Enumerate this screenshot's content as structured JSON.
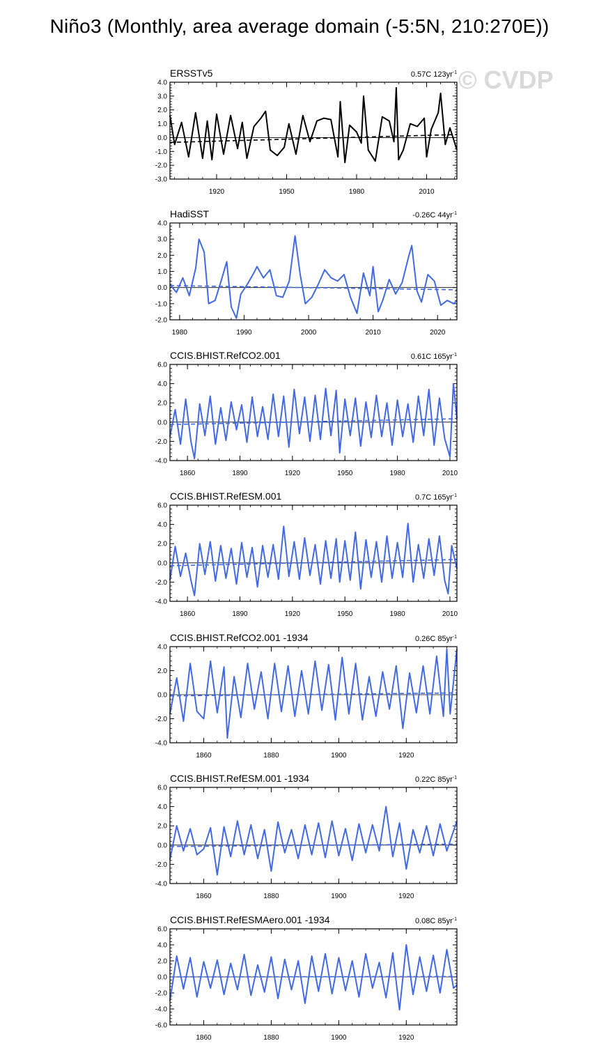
{
  "figure": {
    "title": "Niño3 (Monthly, area average domain (-5:5N, 210:270E))",
    "watermark": "© CVDP"
  },
  "chart_data": [
    {
      "type": "line",
      "title": "ERSSTv5",
      "trend_label": "0.57C 123yr",
      "trend_exp": "-1",
      "color": "#000000",
      "xlim": [
        1900,
        2023
      ],
      "ylim": [
        -3,
        4
      ],
      "yticks": [
        -3,
        -2,
        -1,
        0,
        1,
        2,
        3,
        4
      ],
      "ytick_labels": [
        "-3.0",
        "-2.0",
        "-1.0",
        "0.0",
        "1.0",
        "2.0",
        "3.0",
        "4.0"
      ],
      "xticks": [
        1920,
        1950,
        1980,
        2010
      ],
      "trend": [
        -0.35,
        0.22
      ],
      "series": [
        {
          "x": [
            1900,
            1902,
            1905,
            1908,
            1911,
            1914,
            1916,
            1918,
            1920,
            1923,
            1926,
            1929,
            1931,
            1933,
            1936,
            1939,
            1941,
            1943,
            1946,
            1949,
            1951,
            1954,
            1957,
            1960,
            1963,
            1966,
            1969,
            1972,
            1973,
            1975,
            1977,
            1980,
            1982,
            1983,
            1985,
            1988,
            1991,
            1994,
            1996,
            1997,
            1998,
            2000,
            2003,
            2006,
            2009,
            2010,
            2012,
            2015,
            2016,
            2018,
            2020,
            2023
          ],
          "y": [
            1.6,
            -0.5,
            1.1,
            -1.4,
            1.8,
            -1.5,
            1.2,
            -1.6,
            1.7,
            -1.2,
            1.6,
            -0.8,
            1.1,
            -1.5,
            0.8,
            1.4,
            1.9,
            -0.9,
            -1.3,
            -0.7,
            1.0,
            -1.2,
            1.6,
            -0.3,
            1.2,
            1.4,
            1.3,
            -1.4,
            2.6,
            -1.8,
            0.9,
            0.4,
            -0.4,
            3.0,
            -0.9,
            -1.7,
            1.5,
            1.2,
            -0.3,
            3.6,
            -1.6,
            -0.9,
            1.0,
            0.8,
            1.4,
            -1.4,
            0.6,
            1.8,
            3.2,
            -0.5,
            0.7,
            -0.9
          ]
        }
      ]
    },
    {
      "type": "line",
      "title": "HadiSST",
      "trend_label": "-0.26C 44yr",
      "trend_exp": "-1",
      "color": "#4169e1",
      "xlim": [
        1978.5,
        2023
      ],
      "ylim": [
        -2,
        4
      ],
      "yticks": [
        -2,
        -1,
        0,
        1,
        2,
        3,
        4
      ],
      "ytick_labels": [
        "-2.0",
        "-1.0",
        "0.0",
        "1.0",
        "2.0",
        "3.0",
        "4.0"
      ],
      "xticks": [
        1980,
        1990,
        2000,
        2010,
        2020
      ],
      "trend": [
        0.12,
        -0.14
      ],
      "series": [
        {
          "x": [
            1978.5,
            1979.5,
            1980.5,
            1981.5,
            1982.5,
            1983,
            1983.8,
            1984.5,
            1985.5,
            1986.5,
            1987.3,
            1988,
            1988.8,
            1989.5,
            1990.5,
            1991.5,
            1992,
            1993,
            1994,
            1995,
            1996,
            1997,
            1997.9,
            1998.7,
            1999.5,
            2000.5,
            2001.5,
            2002.5,
            2003.5,
            2004.5,
            2005.5,
            2006.5,
            2007.5,
            2008.5,
            2009.5,
            2010,
            2010.8,
            2011.5,
            2012.5,
            2013.5,
            2014.5,
            2015.5,
            2016,
            2016.8,
            2017.5,
            2018.5,
            2019.5,
            2020.5,
            2021.5,
            2022.5,
            2023
          ],
          "y": [
            0.2,
            -0.3,
            0.6,
            -0.5,
            1.2,
            3.0,
            2.2,
            -1.0,
            -0.8,
            0.5,
            1.6,
            -1.2,
            -1.9,
            -0.4,
            0.2,
            0.9,
            1.3,
            0.6,
            1.1,
            -0.5,
            -0.6,
            0.4,
            3.2,
            0.8,
            -1.0,
            -0.6,
            0.2,
            1.1,
            0.6,
            0.4,
            0.8,
            -0.6,
            -1.6,
            0.9,
            -0.5,
            1.3,
            -1.5,
            -0.8,
            0.5,
            -0.4,
            0.3,
            1.9,
            2.6,
            -0.2,
            -0.9,
            0.8,
            0.4,
            -1.1,
            -0.8,
            -1.0,
            -0.8
          ]
        }
      ]
    },
    {
      "type": "line",
      "title": "CCIS.BHIST.RefCO2.001",
      "trend_label": "0.61C 165yr",
      "trend_exp": "-1",
      "color": "#4169e1",
      "xlim": [
        1850,
        2014
      ],
      "ylim": [
        -4,
        6
      ],
      "yticks": [
        -4,
        -2,
        0,
        2,
        4,
        6
      ],
      "ytick_labels": [
        "-4.0",
        "-2.0",
        "0.0",
        "2.0",
        "4.0",
        "6.0"
      ],
      "xticks": [
        1860,
        1890,
        1920,
        1950,
        1980,
        2010
      ],
      "trend": [
        -0.25,
        0.35
      ],
      "series": [
        {
          "x": [
            1850,
            1853,
            1856,
            1859,
            1862,
            1864,
            1867,
            1870,
            1873,
            1876,
            1879,
            1882,
            1885,
            1888,
            1891,
            1894,
            1897,
            1900,
            1903,
            1906,
            1909,
            1912,
            1915,
            1918,
            1921,
            1924,
            1927,
            1930,
            1933,
            1936,
            1939,
            1942,
            1945,
            1947,
            1950,
            1953,
            1956,
            1959,
            1962,
            1965,
            1968,
            1971,
            1974,
            1977,
            1980,
            1983,
            1986,
            1989,
            1992,
            1995,
            1998,
            2001,
            2004,
            2007,
            2010,
            2012,
            2014
          ],
          "y": [
            -1.5,
            1.3,
            -2.3,
            2.4,
            -2.0,
            -3.8,
            1.9,
            -1.4,
            2.7,
            -2.3,
            1.5,
            -1.9,
            2.1,
            -0.8,
            1.8,
            -2.1,
            2.6,
            -1.5,
            1.6,
            -1.8,
            2.9,
            -1.5,
            2.7,
            -2.6,
            3.4,
            -1.2,
            2.6,
            -2.0,
            2.8,
            -1.8,
            3.5,
            -1.4,
            3.3,
            -3.2,
            2.4,
            -1.4,
            2.5,
            -2.5,
            2.1,
            -1.6,
            2.8,
            -1.5,
            2.0,
            -2.4,
            2.3,
            -1.5,
            1.9,
            -2.1,
            2.7,
            -1.4,
            3.4,
            -2.4,
            2.5,
            -1.7,
            -3.6,
            4.0,
            0.4
          ]
        }
      ]
    },
    {
      "type": "line",
      "title": "CCIS.BHIST.RefESM.001",
      "trend_label": "0.7C 165yr",
      "trend_exp": "-1",
      "color": "#4169e1",
      "xlim": [
        1850,
        2014
      ],
      "ylim": [
        -4,
        6
      ],
      "yticks": [
        -4,
        -2,
        0,
        2,
        4,
        6
      ],
      "ytick_labels": [
        "-4.0",
        "-2.0",
        "0.0",
        "2.0",
        "4.0",
        "6.0"
      ],
      "xticks": [
        1860,
        1890,
        1920,
        1950,
        1980,
        2010
      ],
      "trend": [
        -0.3,
        0.35
      ],
      "series": [
        {
          "x": [
            1850,
            1853,
            1856,
            1859,
            1862,
            1864,
            1867,
            1870,
            1873,
            1876,
            1879,
            1882,
            1885,
            1888,
            1891,
            1894,
            1897,
            1900,
            1903,
            1906,
            1909,
            1912,
            1915,
            1918,
            1921,
            1924,
            1927,
            1930,
            1933,
            1936,
            1939,
            1942,
            1945,
            1947,
            1950,
            1953,
            1956,
            1959,
            1962,
            1965,
            1968,
            1971,
            1974,
            1977,
            1980,
            1983,
            1986,
            1989,
            1992,
            1995,
            1998,
            2001,
            2004,
            2007,
            2009,
            2011,
            2014
          ],
          "y": [
            -1.8,
            1.7,
            -1.4,
            1.0,
            -1.8,
            -3.4,
            2.0,
            -1.2,
            2.2,
            -1.9,
            1.8,
            -1.6,
            1.5,
            -2.2,
            2.1,
            -1.5,
            1.6,
            -2.5,
            1.8,
            -1.5,
            1.9,
            -1.7,
            3.8,
            -1.4,
            2.2,
            -1.7,
            2.6,
            -1.3,
            1.9,
            -2.2,
            2.3,
            -1.6,
            2.5,
            -2.0,
            2.3,
            -1.8,
            3.2,
            -2.7,
            2.4,
            -1.5,
            2.2,
            -2.0,
            2.8,
            -1.6,
            2.1,
            -1.5,
            4.1,
            -2.0,
            1.9,
            -1.6,
            2.5,
            -1.3,
            2.8,
            -1.8,
            -3.2,
            1.8,
            -0.6
          ]
        }
      ]
    },
    {
      "type": "line",
      "title": "CCIS.BHIST.RefCO2.001 -1934",
      "trend_label": "0.26C 85yr",
      "trend_exp": "-1",
      "color": "#4169e1",
      "xlim": [
        1850,
        1935
      ],
      "ylim": [
        -4,
        4
      ],
      "yticks": [
        -4,
        -2,
        0,
        2,
        4
      ],
      "ytick_labels": [
        "-4.0",
        "-2.0",
        "0.0",
        "2.0",
        "4.0"
      ],
      "xticks": [
        1860,
        1880,
        1900,
        1920
      ],
      "trend": [
        -0.1,
        0.15
      ],
      "series": [
        {
          "x": [
            1850,
            1852,
            1854,
            1856,
            1858,
            1860,
            1862,
            1864,
            1866,
            1867,
            1869,
            1871,
            1873,
            1875,
            1877,
            1879,
            1881,
            1883,
            1885,
            1887,
            1889,
            1891,
            1893,
            1895,
            1897,
            1899,
            1901,
            1903,
            1905,
            1907,
            1909,
            1911,
            1913,
            1915,
            1917,
            1919,
            1921,
            1923,
            1925,
            1927,
            1929,
            1931,
            1932,
            1933,
            1935
          ],
          "y": [
            -1.6,
            1.4,
            -2.2,
            2.6,
            -1.4,
            -2.0,
            2.8,
            -1.5,
            2.3,
            -3.6,
            1.5,
            -1.9,
            2.6,
            -1.2,
            1.9,
            -2.0,
            2.6,
            -1.4,
            2.4,
            -1.8,
            2.0,
            -1.6,
            2.8,
            -1.3,
            2.5,
            -2.1,
            3.1,
            -1.6,
            2.6,
            -2.1,
            1.5,
            -1.8,
            1.9,
            -1.2,
            2.4,
            -2.8,
            1.8,
            -1.5,
            2.4,
            -1.6,
            3.2,
            -1.8,
            3.8,
            -1.6,
            3.8
          ]
        }
      ]
    },
    {
      "type": "line",
      "title": "CCIS.BHIST.RefESM.001 -1934",
      "trend_label": "0.22C 85yr",
      "trend_exp": "-1",
      "color": "#4169e1",
      "xlim": [
        1850,
        1935
      ],
      "ylim": [
        -4,
        6
      ],
      "yticks": [
        -4,
        -2,
        0,
        2,
        4,
        6
      ],
      "ytick_labels": [
        "-4.0",
        "-2.0",
        "0.0",
        "2.0",
        "4.0",
        "6.0"
      ],
      "xticks": [
        1860,
        1880,
        1900,
        1920
      ],
      "trend": [
        -0.15,
        0.1
      ],
      "series": [
        {
          "x": [
            1850,
            1852,
            1854,
            1856,
            1858,
            1860,
            1862,
            1864,
            1866,
            1868,
            1870,
            1872,
            1874,
            1876,
            1878,
            1880,
            1882,
            1884,
            1886,
            1888,
            1890,
            1892,
            1894,
            1896,
            1898,
            1900,
            1902,
            1904,
            1906,
            1908,
            1910,
            1912,
            1914,
            1916,
            1918,
            1920,
            1922,
            1924,
            1926,
            1928,
            1930,
            1932,
            1935
          ],
          "y": [
            -1.5,
            2.0,
            -0.6,
            1.7,
            -1.0,
            -0.4,
            1.8,
            -3.1,
            1.9,
            -1.2,
            2.5,
            -1.0,
            2.1,
            -1.4,
            1.6,
            -2.7,
            2.4,
            -0.8,
            1.6,
            -1.4,
            2.1,
            -1.0,
            2.3,
            -1.3,
            2.5,
            -1.1,
            1.7,
            -1.6,
            2.2,
            -0.8,
            2.1,
            -0.6,
            4.0,
            -1.2,
            2.3,
            -2.5,
            1.6,
            -0.8,
            2.0,
            -1.1,
            2.2,
            -0.6,
            2.5
          ]
        }
      ]
    },
    {
      "type": "line",
      "title": "CCIS.BHIST.RefESMAero.001 -1934",
      "trend_label": "0.08C 85yr",
      "trend_exp": "-1",
      "color": "#4169e1",
      "xlim": [
        1850,
        1935
      ],
      "ylim": [
        -6,
        6
      ],
      "yticks": [
        -6,
        -4,
        -2,
        0,
        2,
        4,
        6
      ],
      "ytick_labels": [
        "-6.0",
        "-4.0",
        "-2.0",
        "0.0",
        "2.0",
        "4.0",
        "6.0"
      ],
      "xticks": [
        1860,
        1880,
        1900,
        1920
      ],
      "trend": [
        0.0,
        0.05
      ],
      "series": [
        {
          "x": [
            1850,
            1852,
            1854,
            1856,
            1858,
            1860,
            1862,
            1864,
            1866,
            1868,
            1870,
            1872,
            1874,
            1876,
            1878,
            1880,
            1882,
            1884,
            1886,
            1888,
            1890,
            1892,
            1894,
            1896,
            1898,
            1900,
            1902,
            1904,
            1906,
            1908,
            1910,
            1912,
            1914,
            1916,
            1918,
            1920,
            1922,
            1924,
            1926,
            1928,
            1930,
            1932,
            1934,
            1935
          ],
          "y": [
            -3.0,
            2.6,
            -1.5,
            2.4,
            -2.5,
            1.9,
            -1.4,
            2.1,
            -2.2,
            1.7,
            -1.6,
            2.8,
            -2.3,
            1.5,
            -1.9,
            2.5,
            -2.7,
            2.2,
            -1.6,
            2.0,
            -3.3,
            2.6,
            -1.8,
            2.9,
            -2.1,
            2.4,
            -1.7,
            2.0,
            -2.5,
            2.9,
            -1.4,
            1.8,
            -2.6,
            3.0,
            -4.1,
            4.0,
            -2.2,
            2.5,
            -1.8,
            2.7,
            -2.0,
            3.4,
            -1.4,
            -1.0
          ]
        }
      ]
    }
  ]
}
